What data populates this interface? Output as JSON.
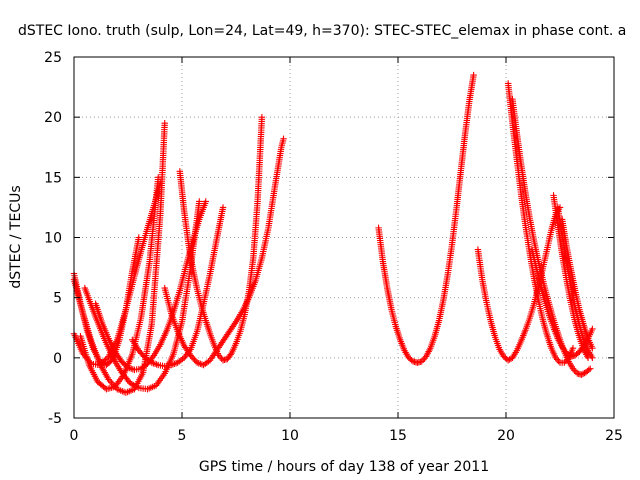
{
  "chart_data": {
    "type": "scatter",
    "title": "dSTEC Iono. truth (sulp, Lon=24, Lat=49, h=370): STEC-STEC_elemax in phase cont. a",
    "xlabel": "GPS time / hours of day 138 of year 2011",
    "ylabel": "dSTEC  / TECUs",
    "xlim": [
      0,
      25
    ],
    "ylim": [
      -5,
      25
    ],
    "xticks": [
      0,
      5,
      10,
      15,
      20,
      25
    ],
    "yticks": [
      -5,
      0,
      5,
      10,
      15,
      20,
      25
    ],
    "xtick_labels": [
      "0",
      "5",
      "10",
      "15",
      "20",
      "25"
    ],
    "ytick_labels": [
      "-5",
      "0",
      "5",
      "10",
      "15",
      "20",
      "25"
    ],
    "grid": true,
    "marker": "plus",
    "color": "#ff0000",
    "series": [
      {
        "x": [
          0.0,
          0.3,
          0.6,
          0.9,
          1.2,
          1.5,
          1.8,
          2.1,
          2.4,
          2.7,
          3.0
        ],
        "y": [
          7.0,
          4.5,
          2.3,
          0.7,
          -0.3,
          -0.6,
          -0.1,
          1.5,
          4.0,
          7.2,
          10.0
        ]
      },
      {
        "x": [
          0.0,
          0.4,
          0.8,
          1.2,
          1.6,
          2.0,
          2.4,
          2.8,
          3.2,
          3.6,
          4.0,
          4.2
        ],
        "y": [
          6.5,
          3.8,
          1.4,
          -0.5,
          -1.8,
          -2.6,
          -2.9,
          -2.6,
          -1.2,
          2.8,
          12.0,
          19.5
        ]
      },
      {
        "x": [
          0.3,
          0.7,
          1.1,
          1.5,
          1.9,
          2.3,
          2.7,
          3.1,
          3.5,
          3.9
        ],
        "y": [
          1.8,
          -0.6,
          -2.0,
          -2.6,
          -2.4,
          -1.4,
          0.3,
          3.3,
          8.0,
          15.0
        ]
      },
      {
        "x": [
          0.0,
          0.4,
          0.8,
          1.2,
          1.6,
          2.0,
          2.4,
          2.8,
          3.2,
          3.6,
          4.0
        ],
        "y": [
          2.0,
          0.4,
          -0.5,
          -0.6,
          0.1,
          1.5,
          4.0,
          6.8,
          9.5,
          12.0,
          14.5
        ]
      },
      {
        "x": [
          0.5,
          1.0,
          1.4,
          1.8,
          2.2,
          2.6,
          3.0,
          3.4,
          3.8,
          4.2,
          4.6,
          5.0,
          5.4,
          5.8
        ],
        "y": [
          5.8,
          3.4,
          1.6,
          0.0,
          -1.2,
          -2.1,
          -2.5,
          -2.6,
          -2.3,
          -1.3,
          0.3,
          3.0,
          7.5,
          13.0
        ]
      },
      {
        "x": [
          1.0,
          1.3,
          1.6,
          1.9,
          2.2,
          2.5,
          2.8,
          3.1,
          3.4,
          3.7,
          4.0,
          4.3,
          4.6,
          4.9,
          5.2,
          5.5,
          5.8,
          6.1
        ],
        "y": [
          4.5,
          2.9,
          1.6,
          0.5,
          -0.3,
          -0.8,
          -1.0,
          -0.9,
          -0.5,
          0.2,
          1.1,
          2.3,
          3.8,
          5.6,
          7.7,
          9.7,
          11.5,
          13.0
        ]
      },
      {
        "x": [
          4.9,
          5.1,
          5.3,
          5.5,
          5.7,
          5.9,
          6.1,
          6.3,
          6.5,
          6.7,
          6.9,
          7.1,
          7.3,
          7.5,
          7.7,
          7.9,
          8.1,
          8.3,
          8.5,
          8.7
        ],
        "y": [
          15.5,
          12.2,
          9.5,
          7.4,
          5.7,
          4.3,
          3.1,
          2.0,
          1.0,
          0.2,
          -0.2,
          -0.1,
          0.4,
          1.2,
          2.2,
          3.6,
          5.5,
          8.3,
          13.0,
          20.0
        ]
      },
      {
        "x": [
          4.2,
          4.5,
          4.8,
          5.1,
          5.4,
          5.7,
          6.0,
          6.3,
          6.6,
          6.9,
          7.2,
          7.5,
          7.8,
          8.1,
          8.4,
          8.7,
          9.0,
          9.3,
          9.6,
          9.7
        ],
        "y": [
          5.8,
          3.7,
          2.2,
          1.0,
          0.2,
          -0.4,
          -0.6,
          -0.2,
          0.6,
          1.4,
          2.2,
          3.0,
          3.9,
          5.0,
          6.4,
          8.3,
          10.8,
          14.2,
          17.5,
          18.2
        ]
      },
      {
        "x": [
          2.7,
          3.0,
          3.3,
          3.6,
          3.9,
          4.2,
          4.5,
          4.8,
          5.1,
          5.4,
          5.7,
          6.0,
          6.3,
          6.6,
          6.9
        ],
        "y": [
          1.5,
          0.6,
          0.0,
          -0.4,
          -0.6,
          -0.7,
          -0.6,
          -0.4,
          0.0,
          0.7,
          2.2,
          4.5,
          7.0,
          9.8,
          12.5
        ]
      },
      {
        "x": [
          14.1,
          14.3,
          14.5,
          14.7,
          14.9,
          15.1,
          15.3,
          15.5,
          15.7,
          15.9,
          16.1,
          16.3,
          16.5,
          16.7,
          16.9,
          17.1,
          17.3,
          17.5,
          17.7,
          17.9,
          18.1,
          18.3,
          18.5
        ],
        "y": [
          10.8,
          8.0,
          5.8,
          4.0,
          2.6,
          1.5,
          0.6,
          0.0,
          -0.3,
          -0.4,
          -0.3,
          0.1,
          0.8,
          1.8,
          3.1,
          4.8,
          6.9,
          9.4,
          12.3,
          15.4,
          18.5,
          21.3,
          23.5
        ]
      },
      {
        "x": [
          18.7,
          18.9,
          19.1,
          19.3,
          19.5,
          19.7,
          19.9,
          20.1,
          20.3,
          20.5,
          20.7,
          20.9,
          21.1,
          21.3,
          21.5,
          21.7,
          21.9,
          22.1,
          22.3,
          22.5
        ],
        "y": [
          9.0,
          6.5,
          4.6,
          3.0,
          1.7,
          0.7,
          0.1,
          -0.2,
          0.0,
          0.6,
          1.4,
          2.3,
          3.3,
          4.5,
          5.9,
          7.4,
          9.0,
          10.6,
          11.9,
          12.5
        ]
      },
      {
        "x": [
          20.1,
          20.3,
          20.5,
          20.7,
          20.9,
          21.1,
          21.3,
          21.5,
          21.7,
          21.9,
          22.1,
          22.3,
          22.5,
          22.7,
          22.9,
          23.1
        ],
        "y": [
          22.8,
          19.5,
          16.5,
          13.6,
          11.0,
          8.7,
          6.6,
          4.8,
          3.2,
          1.9,
          0.8,
          0.0,
          -0.4,
          -0.4,
          0.0,
          0.8
        ]
      },
      {
        "x": [
          20.3,
          20.5,
          20.7,
          20.9,
          21.1,
          21.3,
          21.5,
          21.7,
          21.9,
          22.1,
          22.3,
          22.5,
          22.7,
          22.9,
          23.1,
          23.3,
          23.5,
          23.7,
          23.9
        ],
        "y": [
          21.5,
          18.7,
          16.1,
          13.7,
          11.6,
          9.7,
          8.0,
          6.5,
          5.1,
          3.8,
          2.6,
          1.5,
          0.5,
          -0.3,
          -0.9,
          -1.3,
          -1.4,
          -1.2,
          -0.9
        ]
      },
      {
        "x": [
          21.2,
          21.4,
          21.6,
          21.8,
          22.0,
          22.2,
          22.4,
          22.6,
          22.8,
          23.0,
          23.2,
          23.4,
          23.6,
          23.8,
          24.0
        ],
        "y": [
          9.0,
          7.5,
          6.0,
          4.7,
          3.5,
          2.5,
          1.6,
          0.9,
          0.4,
          0.1,
          0.2,
          0.5,
          1.0,
          1.6,
          2.4
        ]
      },
      {
        "x": [
          22.2,
          22.4,
          22.6,
          22.8,
          23.0,
          23.2,
          23.4,
          23.6,
          23.8
        ],
        "y": [
          13.5,
          11.0,
          8.6,
          6.5,
          4.6,
          3.0,
          1.7,
          0.7,
          0.0
        ]
      },
      {
        "x": [
          22.4,
          22.6,
          22.8,
          23.0,
          23.2,
          23.4,
          23.6,
          23.8,
          24.0
        ],
        "y": [
          12.5,
          10.2,
          8.0,
          6.0,
          4.2,
          2.7,
          1.5,
          0.6,
          0.0
        ]
      },
      {
        "x": [
          22.6,
          22.8,
          23.0,
          23.2,
          23.4,
          23.6,
          23.8,
          24.0
        ],
        "y": [
          11.5,
          9.3,
          7.4,
          5.6,
          4.0,
          2.7,
          1.6,
          0.8
        ]
      }
    ]
  }
}
